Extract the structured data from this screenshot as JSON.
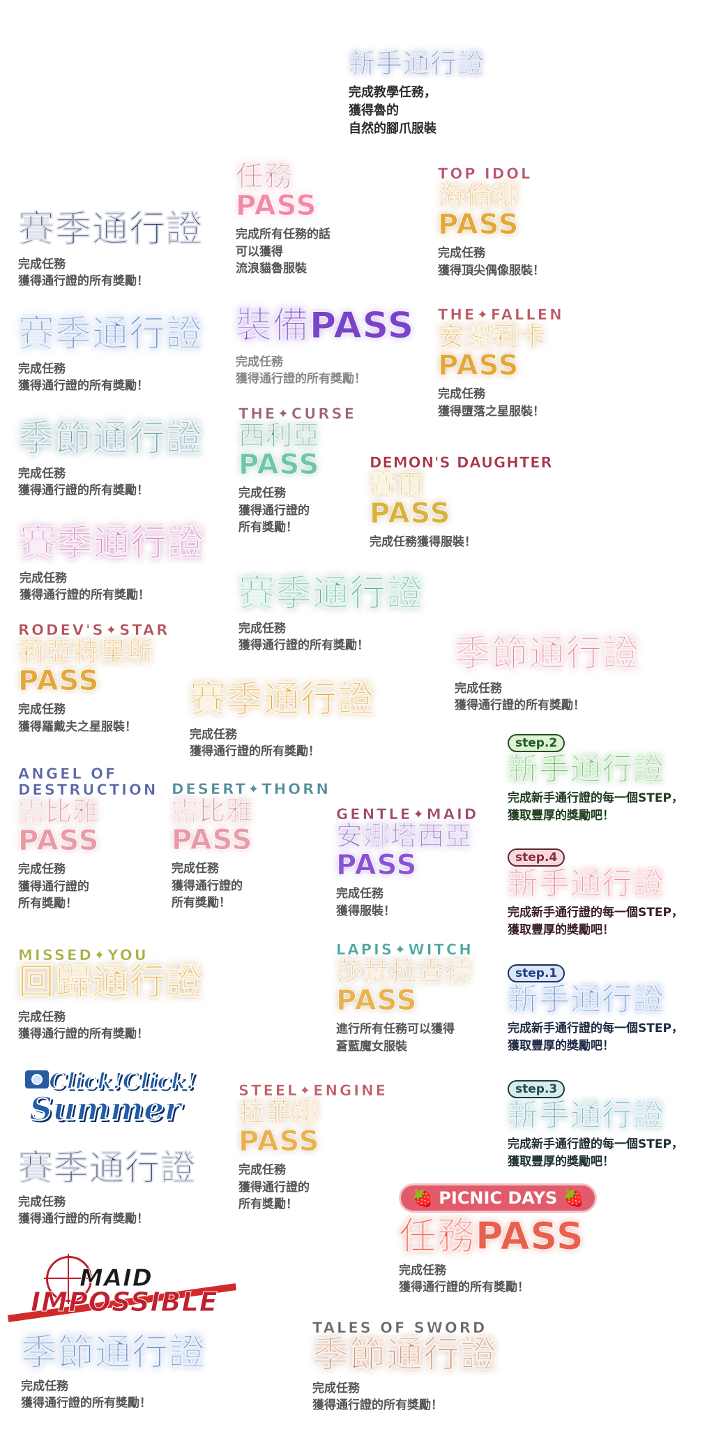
{
  "rookie_pass": {
    "title": "新手通行證",
    "desc": "完成教學任務，\n獲得魯的\n自然的腳爪服裝"
  },
  "mission_pass": {
    "title": "任務",
    "pass": "PASS",
    "desc": "完成所有任務的話\n可以獲得\n流浪貓魯服裝"
  },
  "top_idol": {
    "sub": "TOP IDOL",
    "title": "海倫娜",
    "pass": "PASS",
    "desc": "完成任務\n獲得頂尖偶像服裝！"
  },
  "season_navy": {
    "title": "賽季通行證",
    "desc": "完成任務\n獲得通行證的所有獎勵！"
  },
  "equip_pass": {
    "title": "裝備PASS",
    "desc": "完成任務\n獲得通行證的所有獎勵！"
  },
  "fallen": {
    "sub": "THE✦FALLEN",
    "title": "安潔莉卡",
    "pass": "PASS",
    "desc": "完成任務\n獲得墮落之星服裝！"
  },
  "season_blue": {
    "title": "賽季通行證",
    "desc": "完成任務\n獲得通行證的所有獎勵！"
  },
  "curse": {
    "sub": "THE✦CURSE",
    "title": "西利亞",
    "pass": "PASS",
    "desc": "完成任務\n獲得通行證的\n所有獎勵！"
  },
  "festival_teal": {
    "title": "季節通行證",
    "desc": "完成任務\n獲得通行證的所有獎勵！"
  },
  "demon": {
    "sub": "DEMON'S DAUGHTER",
    "title": "賽爾",
    "pass": "PASS",
    "desc": "完成任務獲得服裝！"
  },
  "season_pink": {
    "title": "賽季通行證",
    "desc": "完成任務\n獲得通行證的所有獎勵！"
  },
  "season_green": {
    "title": "賽季通行證",
    "desc": "完成任務\n獲得通行證的所有獎勵！"
  },
  "rodev": {
    "sub": "RODEV'S✦STAR",
    "title": "莉亞特里斯",
    "pass": "PASS",
    "desc": "完成任務\n獲得羅戴夫之星服裝！"
  },
  "festival_pink": {
    "title": "季節通行證",
    "desc": "完成任務\n獲得通行證的所有獎勵！"
  },
  "season_gold": {
    "title": "賽季通行證",
    "desc": "完成任務\n獲得通行證的所有獎勵！"
  },
  "step2": {
    "badge": "step.2",
    "title": "新手通行證",
    "desc": "完成新手通行證的每一個STEP，\n獲取豐厚的獎勵吧！"
  },
  "angel": {
    "sub": "ANGEL OF\nDESTRUCTION",
    "title": "露比雅",
    "pass": "PASS",
    "desc": "完成任務\n獲得通行證的\n所有獎勵！"
  },
  "desert": {
    "sub": "DESERT✦THORN",
    "title": "露比雅",
    "pass": "PASS",
    "desc": "完成任務\n獲得通行證的\n所有獎勵！"
  },
  "gentle": {
    "sub": "GENTLE✦MAID",
    "title": "安娜塔西亞",
    "pass": "PASS",
    "desc": "完成任務\n獲得服裝！"
  },
  "step4": {
    "badge": "step.4",
    "title": "新手通行證",
    "desc": "完成新手通行證的每一個STEP，\n獲取豐厚的獎勵吧！"
  },
  "missed": {
    "sub": "MISSED✦YOU",
    "title": "回歸通行證",
    "desc": "完成任務\n獲得通行證的所有獎勵！"
  },
  "lapis": {
    "sub": "LAPIS✦WITCH",
    "title": "莎赫拉查德",
    "pass": "PASS",
    "desc": "進行所有任務可以獲得\n蒼藍魔女服裝"
  },
  "step1": {
    "badge": "step.1",
    "title": "新手通行證",
    "desc": "完成新手通行證的每一個STEP，\n獲取豐厚的獎勵吧！"
  },
  "click_summer": {
    "logo_line1": "Click!Click!",
    "logo_line2": "Summer",
    "title": "賽季通行證",
    "desc": "完成任務\n獲得通行證的所有獎勵！"
  },
  "steel": {
    "sub": "STEEL✦ENGINE",
    "title": "拉菲娜",
    "pass": "PASS",
    "desc": "完成任務\n獲得通行證的\n所有獎勵！"
  },
  "step3": {
    "badge": "step.3",
    "title": "新手通行證",
    "desc": "完成新手通行證的每一個STEP，\n獲取豐厚的獎勵吧！"
  },
  "picnic": {
    "banner": "PICNIC DAYS",
    "title": "任務PASS",
    "desc": "完成任務\n獲得通行證的所有獎勵！"
  },
  "maid_impossible": {
    "logo_line1": "MAID",
    "logo_line2": "IMPOSSIBLE",
    "title": "季節通行證",
    "desc": "完成任務\n獲得通行證的所有獎勵！"
  },
  "sword": {
    "sub": "TALES OF SWORD",
    "title": "季節通行證",
    "desc": "完成任務\n獲得通行證的所有獎勵！"
  },
  "colors": {
    "navy": "#2b3d6b",
    "blue": "#5b86c6",
    "teal": "#6a9ea8",
    "pink": "#d77fc0",
    "green": "#56b39a",
    "gold": "#e2a83a",
    "purple": "#7a44c9",
    "rose": "#e08ea0",
    "coral": "#e8614e",
    "dark_rose": "#b85a64"
  }
}
